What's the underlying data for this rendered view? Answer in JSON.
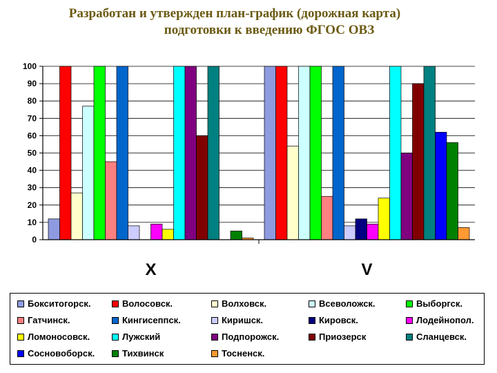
{
  "title": {
    "line1": "Разработан и утвержден план-график (дорожная карта)",
    "line2": "подготовки к введению ФГОС ОВЗ"
  },
  "chart_data": {
    "type": "bar",
    "categories": [
      "X",
      "V"
    ],
    "ylim": [
      0,
      100
    ],
    "yticks": [
      0,
      10,
      20,
      30,
      40,
      50,
      60,
      70,
      80,
      90,
      100
    ],
    "grid": true,
    "legend_position": "bottom",
    "series": [
      {
        "name": "Бокситогорск.",
        "color": "#8E9BE0",
        "values": [
          12,
          100
        ]
      },
      {
        "name": "Волосовск.",
        "color": "#FF0000",
        "values": [
          100,
          100
        ]
      },
      {
        "name": "Волховск.",
        "color": "#FFFFCC",
        "values": [
          27,
          54
        ]
      },
      {
        "name": "Всеволожск.",
        "color": "#CCFFFF",
        "values": [
          77,
          100
        ]
      },
      {
        "name": "Выборгск.",
        "color": "#00FF00",
        "values": [
          100,
          100
        ]
      },
      {
        "name": "Гатчинск.",
        "color": "#FF8080",
        "values": [
          45,
          25
        ]
      },
      {
        "name": "Кингисеппск.",
        "color": "#0066CC",
        "values": [
          100,
          100
        ]
      },
      {
        "name": "Киришск.",
        "color": "#CCCCFF",
        "values": [
          8,
          8
        ]
      },
      {
        "name": "Кировск.",
        "color": "#000080",
        "values": [
          0,
          12
        ]
      },
      {
        "name": "Лодейнопол.",
        "color": "#FF00FF",
        "values": [
          9,
          9
        ]
      },
      {
        "name": "Ломоносовск.",
        "color": "#FFFF00",
        "values": [
          6,
          24
        ]
      },
      {
        "name": "Лужский",
        "color": "#00FFFF",
        "values": [
          100,
          100
        ]
      },
      {
        "name": "Подпорожск.",
        "color": "#800080",
        "values": [
          100,
          50
        ]
      },
      {
        "name": "Приозерск",
        "color": "#800000",
        "values": [
          60,
          90
        ]
      },
      {
        "name": "Сланцевск.",
        "color": "#008080",
        "values": [
          100,
          100
        ]
      },
      {
        "name": "Сосновоборск.",
        "color": "#0000FF",
        "values": [
          0,
          62
        ]
      },
      {
        "name": "Тихвинск",
        "color": "#008000",
        "values": [
          5,
          56
        ]
      },
      {
        "name": "Тосненск.",
        "color": "#FF9933",
        "values": [
          1,
          7
        ]
      }
    ]
  }
}
